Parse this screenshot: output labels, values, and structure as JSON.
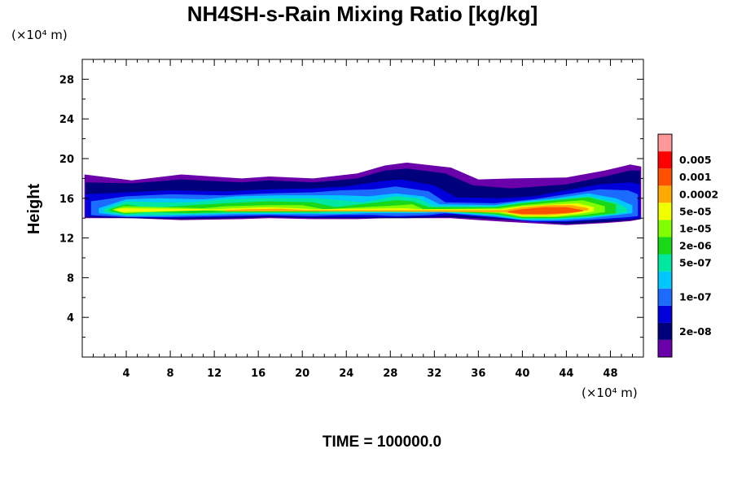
{
  "chart_data": {
    "type": "heatmap",
    "title": "NH4SH-s-Rain Mixing Ratio [kg/kg]",
    "xlabel": "",
    "ylabel": "Height",
    "x_unit": "(×10⁴ m)",
    "y_unit": "(×10⁴ m)",
    "xlim": [
      0,
      51
    ],
    "ylim": [
      0,
      30
    ],
    "x_ticks": [
      4,
      8,
      12,
      16,
      20,
      24,
      28,
      32,
      36,
      40,
      44,
      48
    ],
    "y_ticks": [
      4,
      8,
      12,
      16,
      20,
      24,
      28
    ],
    "x_tick_labels": [
      "4",
      "8",
      "12",
      "16",
      "20",
      "24",
      "28",
      "32",
      "36",
      "40",
      "44",
      "48"
    ],
    "y_tick_labels": [
      "4",
      "8",
      "12",
      "16",
      "20",
      "24",
      "28"
    ],
    "colorbar": {
      "levels": [
        "2e-08",
        "1e-07",
        "5e-07",
        "2e-06",
        "1e-05",
        "5e-05",
        "0.0002",
        "0.001",
        "0.005"
      ],
      "colors": [
        "#6a00aa",
        "#00007a",
        "#0000dd",
        "#1c6bff",
        "#00c8ff",
        "#00e8a0",
        "#18d818",
        "#80ff00",
        "#f0ff00",
        "#ffaa00",
        "#ff5000",
        "#ff0000",
        "#ff9999"
      ]
    },
    "layers": [
      {
        "level": 0,
        "x": [
          0.2,
          4.5,
          9,
          14.5,
          17,
          21,
          25,
          27.5,
          29.5,
          33.5,
          36,
          39,
          44,
          47.5,
          49.8,
          50.8
        ],
        "top": [
          18.4,
          17.8,
          18.4,
          18.0,
          18.2,
          18.0,
          18.5,
          19.3,
          19.6,
          19.1,
          17.9,
          18.0,
          18.1,
          18.8,
          19.4,
          19.2
        ],
        "bot": [
          14.0,
          14.0,
          13.8,
          13.9,
          14.0,
          13.9,
          13.9,
          14.0,
          14.0,
          14.0,
          13.8,
          13.6,
          13.3,
          13.5,
          13.7,
          13.9
        ]
      },
      {
        "level": 1,
        "x": [
          0.3,
          4.5,
          9,
          14.5,
          17,
          21,
          25,
          27.5,
          29.5,
          33,
          35.5,
          39,
          44,
          47.5,
          49.8,
          50.7
        ],
        "top": [
          17.6,
          17.5,
          17.9,
          17.6,
          17.8,
          17.6,
          18.0,
          18.8,
          19.0,
          18.5,
          17.3,
          17.0,
          17.4,
          18.2,
          18.8,
          18.8
        ],
        "bot": [
          14.1,
          14.0,
          13.9,
          14.0,
          14.1,
          14.0,
          14.0,
          14.0,
          14.0,
          14.1,
          14.0,
          13.8,
          13.4,
          13.6,
          13.8,
          13.9
        ]
      },
      {
        "level": 2,
        "x": [
          0.3,
          4,
          8,
          13,
          17,
          21,
          24,
          27,
          29,
          32,
          34,
          38,
          41,
          44,
          47,
          49.8,
          50.7
        ],
        "top": [
          16.4,
          16.6,
          16.8,
          16.7,
          16.9,
          17.0,
          17.2,
          17.7,
          17.9,
          17.3,
          16.1,
          16.0,
          16.2,
          16.8,
          17.4,
          17.6,
          17.4
        ],
        "bot": [
          14.2,
          14.1,
          14.0,
          14.1,
          14.2,
          14.1,
          14.1,
          14.1,
          14.1,
          14.2,
          14.3,
          14.0,
          13.6,
          13.6,
          13.8,
          13.9,
          14.0
        ]
      },
      {
        "level": 3,
        "x": [
          0.8,
          4,
          8,
          13,
          17,
          21,
          23.5,
          26.5,
          28.5,
          31.5,
          33,
          37.5,
          41,
          44,
          47,
          49.6,
          50.5
        ],
        "top": [
          15.7,
          16.2,
          16.4,
          16.3,
          16.5,
          16.6,
          16.8,
          16.9,
          17.2,
          16.7,
          15.6,
          15.5,
          15.9,
          16.4,
          16.9,
          16.8,
          16.4
        ],
        "bot": [
          14.3,
          14.1,
          14.1,
          14.2,
          14.3,
          14.2,
          14.3,
          14.3,
          14.2,
          14.3,
          14.5,
          14.1,
          13.7,
          13.7,
          13.9,
          14.1,
          14.2
        ]
      },
      {
        "level": 4,
        "x": [
          1.5,
          4,
          7,
          11,
          14,
          18,
          21,
          23.5,
          26,
          28.5,
          31,
          32.5,
          37.5,
          40,
          43,
          46,
          48.5,
          50
        ],
        "top": [
          15.0,
          15.9,
          16.0,
          15.9,
          16.2,
          16.3,
          16.3,
          16.3,
          16.2,
          16.5,
          16.2,
          15.4,
          15.3,
          15.7,
          16.0,
          16.5,
          16.0,
          15.3
        ],
        "bot": [
          14.5,
          14.2,
          14.2,
          14.3,
          14.4,
          14.4,
          14.4,
          14.4,
          14.5,
          14.5,
          14.5,
          14.6,
          14.2,
          13.8,
          13.8,
          14.0,
          14.3,
          14.5
        ]
      },
      {
        "level": 5,
        "x": [
          2,
          4,
          7,
          10,
          13,
          17,
          21,
          23.5,
          25.5,
          28.5,
          30.5,
          32,
          37.5,
          40,
          43,
          46,
          48.5,
          49.5
        ],
        "top": [
          14.9,
          15.7,
          15.6,
          15.6,
          15.9,
          16.0,
          16.0,
          15.8,
          15.6,
          16.2,
          16.0,
          15.2,
          15.2,
          15.6,
          15.9,
          16.2,
          15.6,
          15.0
        ],
        "bot": [
          14.6,
          14.3,
          14.3,
          14.4,
          14.5,
          14.5,
          14.5,
          14.5,
          14.6,
          14.6,
          14.6,
          14.7,
          14.3,
          13.9,
          13.9,
          14.1,
          14.4,
          14.6
        ]
      },
      {
        "level": 6,
        "x": [
          2.5,
          4,
          6,
          10,
          13,
          17,
          21,
          23,
          28.5,
          30,
          31.5,
          37.5,
          40,
          43,
          46,
          48.5
        ],
        "top": [
          14.9,
          15.4,
          15.0,
          15.3,
          15.5,
          15.7,
          15.6,
          15.1,
          15.8,
          15.7,
          15.1,
          15.1,
          15.5,
          15.8,
          16.1,
          15.4
        ],
        "bot": [
          14.7,
          14.4,
          14.6,
          14.5,
          14.6,
          14.6,
          14.6,
          14.7,
          14.7,
          14.7,
          14.8,
          14.4,
          14.0,
          14.0,
          14.2,
          14.5
        ]
      },
      {
        "level": 7,
        "x": [
          2.8,
          3.8,
          11,
          13,
          17,
          20,
          22,
          29,
          30,
          31,
          37.8,
          40,
          43,
          45.5,
          47.5
        ],
        "top": [
          14.9,
          15.2,
          15.0,
          15.2,
          15.3,
          15.3,
          14.9,
          15.3,
          15.4,
          14.9,
          15.0,
          15.3,
          15.6,
          15.8,
          15.2
        ],
        "bot": [
          14.8,
          14.5,
          14.8,
          14.7,
          14.7,
          14.7,
          14.8,
          14.8,
          14.8,
          14.9,
          14.5,
          14.1,
          14.1,
          14.3,
          14.6
        ]
      },
      {
        "level": 8,
        "x": [
          3,
          3.6,
          12,
          14,
          17,
          19.5,
          21,
          29.5,
          30.5,
          38,
          40,
          43,
          45,
          46.5
        ],
        "top": [
          14.9,
          15.0,
          14.9,
          15.0,
          15.1,
          15.0,
          14.9,
          15.0,
          14.9,
          14.9,
          15.2,
          15.4,
          15.5,
          15.1
        ],
        "bot": [
          14.8,
          14.6,
          14.8,
          14.8,
          14.8,
          14.8,
          14.8,
          14.8,
          14.8,
          14.6,
          14.2,
          14.2,
          14.4,
          14.7
        ]
      },
      {
        "level": 9,
        "x": [
          13,
          15,
          18,
          20.5,
          38.3,
          40,
          42.5,
          44.5,
          46
        ],
        "top": [
          14.8,
          14.9,
          14.95,
          14.8,
          14.8,
          15.1,
          15.3,
          15.3,
          15.0
        ],
        "bot": [
          14.7,
          14.7,
          14.7,
          14.7,
          14.6,
          14.3,
          14.3,
          14.5,
          14.8
        ]
      },
      {
        "level": 10,
        "x": [
          38.7,
          40,
          42,
          44,
          45.5
        ],
        "top": [
          14.7,
          14.9,
          15.1,
          15.1,
          14.8
        ],
        "bot": [
          14.6,
          14.4,
          14.4,
          14.5,
          14.7
        ]
      }
    ]
  },
  "footer": {
    "time_label": "TIME = 100000.0"
  }
}
